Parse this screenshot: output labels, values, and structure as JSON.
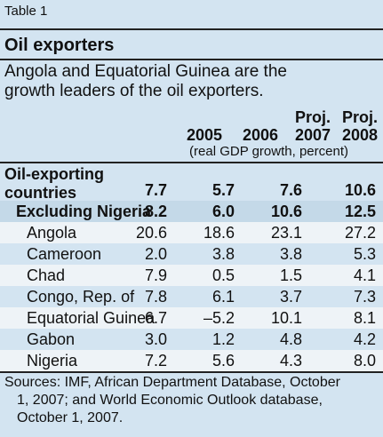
{
  "table_label": "Table 1",
  "title": "Oil exporters",
  "subtitle_line1": "Angola and Equatorial Guinea are the",
  "subtitle_line2": "growth leaders of the oil exporters.",
  "columns": [
    {
      "top": "",
      "year": "2005"
    },
    {
      "top": "",
      "year": "2006"
    },
    {
      "top": "Proj.",
      "year": "2007"
    },
    {
      "top": "Proj.",
      "year": "2008"
    }
  ],
  "unit": "(real GDP growth, percent)",
  "group": {
    "label_line1": "Oil-exporting",
    "label_line2": "countries",
    "values": [
      "7.7",
      "5.7",
      "7.6",
      "10.6"
    ]
  },
  "rows": [
    {
      "label": "Excluding Nigeria",
      "values": [
        "8.2",
        "6.0",
        "10.6",
        "12.5"
      ]
    },
    {
      "label": "Angola",
      "values": [
        "20.6",
        "18.6",
        "23.1",
        "27.2"
      ]
    },
    {
      "label": "Cameroon",
      "values": [
        "2.0",
        "3.8",
        "3.8",
        "5.3"
      ]
    },
    {
      "label": "Chad",
      "values": [
        "7.9",
        "0.5",
        "1.5",
        "4.1"
      ]
    },
    {
      "label": "Congo, Rep. of",
      "values": [
        "7.8",
        "6.1",
        "3.7",
        "7.3"
      ]
    },
    {
      "label": "Equatorial Guinea",
      "values": [
        "6.7",
        "–5.2",
        "10.1",
        "8.1"
      ]
    },
    {
      "label": "Gabon",
      "values": [
        "3.0",
        "1.2",
        "4.8",
        "4.2"
      ]
    },
    {
      "label": "Nigeria",
      "values": [
        "7.2",
        "5.6",
        "4.3",
        "8.0"
      ]
    }
  ],
  "sources_line1": "Sources: IMF, African Department Database, October",
  "sources_line2": "1, 2007; and World Economic Outlook database,",
  "sources_line3": "October 1, 2007."
}
